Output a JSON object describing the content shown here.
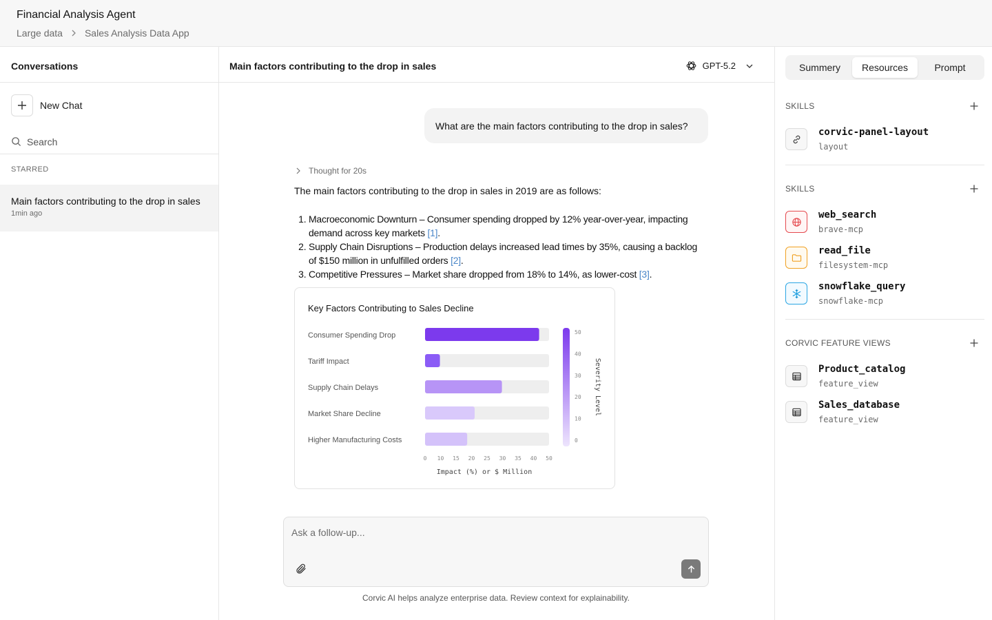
{
  "header": {
    "title": "Financial Analysis Agent",
    "breadcrumb": [
      "Large data",
      "Sales Analysis Data App"
    ]
  },
  "sidebar": {
    "title": "Conversations",
    "new_chat_label": "New Chat",
    "search_placeholder": "Search",
    "starred_label": "STARRED",
    "conversations": [
      {
        "title": "Main factors contributing to the drop in sales",
        "time": "1min ago"
      }
    ]
  },
  "main": {
    "title": "Main factors contributing to the drop in sales",
    "model": "GPT-5.2",
    "user_message": "What are the main factors contributing to the drop in sales?",
    "thought_label": "Thought for 20s",
    "answer_intro": "The main factors contributing to the drop in sales in 2019 are as follows:",
    "answer_points": [
      {
        "text": "Macroeconomic Downturn – Consumer spending dropped by 12% year-over-year, impacting demand across key markets ",
        "cite": "[1]"
      },
      {
        "text": "Supply Chain Disruptions – Production delays increased lead times by 35%, causing a backlog of $150 million in unfulfilled orders ",
        "cite": "[2]"
      },
      {
        "text": "Competitive Pressures – Market share dropped from 18% to 14%, as lower-cost ",
        "cite": "[3]"
      }
    ],
    "composer_placeholder": "Ask a follow-up...",
    "disclaimer": "Corvic AI helps analyze enterprise data. Review context for explainability."
  },
  "chart_data": {
    "type": "bar",
    "orientation": "horizontal",
    "title": "Key Factors Contributing to Sales Decline",
    "categories": [
      "Consumer Spending Drop",
      "Tariff Impact",
      "Supply Chain Delays",
      "Market Share Decline",
      "Higher Manufacturing Costs"
    ],
    "values": [
      46,
      6,
      31,
      20,
      17
    ],
    "xlabel": "Impact (%) or $ Million",
    "xlim": [
      0,
      50
    ],
    "xticks": [
      0,
      10,
      15,
      20,
      25,
      30,
      35,
      40,
      50
    ],
    "colorbar": {
      "label": "Severity Level",
      "ticks": [
        50,
        40,
        30,
        20,
        10,
        0
      ]
    },
    "colors": [
      "#7c3aed",
      "#8b5cf6",
      "#b794f6",
      "#d9c9fb",
      "#d4c2fa"
    ],
    "track_color": "#eeeeee"
  },
  "right_panel": {
    "tabs": [
      "Summery",
      "Resources",
      "Prompt"
    ],
    "active_tab": "Resources",
    "sections": [
      {
        "label": "SKILLS",
        "items": [
          {
            "name": "corvic-panel-layout",
            "sub": "layout",
            "icon": "link-icon"
          }
        ]
      },
      {
        "label": "SKILLS",
        "items": [
          {
            "name": "web_search",
            "sub": "brave-mcp",
            "icon": "globe-icon",
            "color": "#e5484d"
          },
          {
            "name": "read_file",
            "sub": "filesystem-mcp",
            "icon": "folder-icon",
            "color": "#f0a020"
          },
          {
            "name": "snowflake_query",
            "sub": "snowflake-mcp",
            "icon": "snowflake-icon",
            "color": "#29a5e3"
          }
        ]
      },
      {
        "label": "CORVIC FEATURE VIEWS",
        "items": [
          {
            "name": "Product_catalog",
            "sub": "feature_view",
            "icon": "table-icon"
          },
          {
            "name": "Sales_database",
            "sub": "feature_view",
            "icon": "table-icon"
          }
        ]
      }
    ]
  }
}
